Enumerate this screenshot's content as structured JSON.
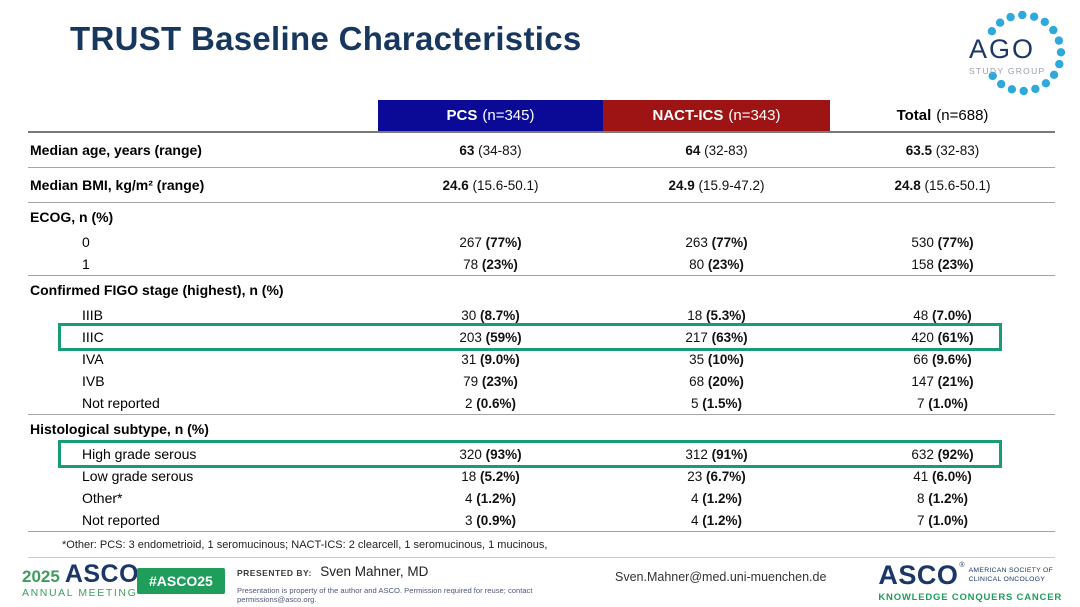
{
  "slide": {
    "title": "TRUST Baseline Characteristics"
  },
  "ago_logo": {
    "name": "AGO",
    "subtitle": "STUDY GROUP",
    "dot_color": "#2FA8DC"
  },
  "colors": {
    "title_navy": "#17375E",
    "pcs_blue": "#0A0A96",
    "nact_red": "#9E1414",
    "highlight_green": "#169C76",
    "asco_green": "#1F9D5B",
    "asco_navy": "#1B3667"
  },
  "table": {
    "header": {
      "columns": [
        {
          "name": "PCS",
          "n": "(n=345)"
        },
        {
          "name": "NACT-ICS",
          "n": "(n=343)"
        },
        {
          "name": "Total",
          "n": "(n=688)"
        }
      ]
    },
    "rows": [
      {
        "label": "Median age, years (range)",
        "labelBold": true,
        "boldPart": "first",
        "sep": true,
        "cells": [
          [
            "63",
            "(34-83)"
          ],
          [
            "64",
            "(32-83)"
          ],
          [
            "63.5",
            "(32-83)"
          ]
        ]
      },
      {
        "label": "Median BMI, kg/m² (range)",
        "labelBold": true,
        "boldPart": "first",
        "sep": true,
        "cells": [
          [
            "24.6",
            "(15.6-50.1)"
          ],
          [
            "24.9",
            "(15.9-47.2)"
          ],
          [
            "24.8",
            "(15.6-50.1)"
          ]
        ]
      },
      {
        "label": "ECOG, n (%)"
      },
      {
        "label": "0",
        "indent": true,
        "boldPart": "second",
        "cells": [
          [
            "267",
            "(77%)"
          ],
          [
            "263",
            "(77%)"
          ],
          [
            "530",
            "(77%)"
          ]
        ]
      },
      {
        "label": "1",
        "indent": true,
        "boldPart": "second",
        "sep": true,
        "cells": [
          [
            "78",
            "(23%)"
          ],
          [
            "80",
            "(23%)"
          ],
          [
            "158",
            "(23%)"
          ]
        ]
      },
      {
        "label": "Confirmed FIGO stage (highest), n (%)"
      },
      {
        "label": "IIIB",
        "indent": true,
        "boldPart": "second",
        "cells": [
          [
            "30",
            "(8.7%)"
          ],
          [
            "18",
            "(5.3%)"
          ],
          [
            "48",
            "(7.0%)"
          ]
        ]
      },
      {
        "label": "IIIC",
        "indent": true,
        "boldPart": "second",
        "highlighted": true,
        "cells": [
          [
            "203",
            "(59%)"
          ],
          [
            "217",
            "(63%)"
          ],
          [
            "420",
            "(61%)"
          ]
        ]
      },
      {
        "label": "IVA",
        "indent": true,
        "boldPart": "second",
        "cells": [
          [
            "31",
            "(9.0%)"
          ],
          [
            "35",
            "(10%)"
          ],
          [
            "66",
            "(9.6%)"
          ]
        ]
      },
      {
        "label": "IVB",
        "indent": true,
        "boldPart": "second",
        "cells": [
          [
            "79",
            "(23%)"
          ],
          [
            "68",
            "(20%)"
          ],
          [
            "147",
            "(21%)"
          ]
        ]
      },
      {
        "label": "Not reported",
        "indent": true,
        "boldPart": "second",
        "sep": true,
        "cells": [
          [
            "2",
            "(0.6%)"
          ],
          [
            "5",
            "(1.5%)"
          ],
          [
            "7",
            "(1.0%)"
          ]
        ]
      },
      {
        "label": "Histological subtype, n (%)"
      },
      {
        "label": "High grade serous",
        "indent": true,
        "boldPart": "second",
        "highlighted": true,
        "cells": [
          [
            "320",
            "(93%)"
          ],
          [
            "312",
            "(91%)"
          ],
          [
            "632",
            "(92%)"
          ]
        ]
      },
      {
        "label": "Low grade serous",
        "indent": true,
        "boldPart": "second",
        "cells": [
          [
            "18",
            "(5.2%)"
          ],
          [
            "23",
            "(6.7%)"
          ],
          [
            "41",
            "(6.0%)"
          ]
        ]
      },
      {
        "label": "Other*",
        "indent": true,
        "boldPart": "second",
        "cells": [
          [
            "4",
            "(1.2%)"
          ],
          [
            "4",
            "(1.2%)"
          ],
          [
            "8",
            "(1.2%)"
          ]
        ]
      },
      {
        "label": "Not reported",
        "indent": true,
        "boldPart": "second",
        "sep": true,
        "cells": [
          [
            "3",
            "(0.9%)"
          ],
          [
            "4",
            "(1.2%)"
          ],
          [
            "7",
            "(1.0%)"
          ]
        ]
      }
    ],
    "footnote": "*Other: PCS: 3 endometrioid, 1 seromucinous; NACT-ICS: 2 clearcell, 1 seromucinous, 1 mucinous,"
  },
  "footer": {
    "meeting_logo": {
      "year": "2025",
      "org": "ASCO",
      "reg": "®",
      "subtitle": "ANNUAL MEETING"
    },
    "hashtag": "#ASCO25",
    "presented_by_label": "PRESENTED BY:",
    "presenter": "Sven Mahner, MD",
    "disclaimer": "Presentation is property of the author and ASCO. Permission required for reuse; contact permissions@asco.org.",
    "email": "Sven.Mahner@med.uni-muenchen.de",
    "asco_logo": {
      "org": "ASCO",
      "reg": "®",
      "society_line1": "AMERICAN SOCIETY OF",
      "society_line2": "CLINICAL ONCOLOGY",
      "tagline": "KNOWLEDGE CONQUERS CANCER"
    }
  }
}
